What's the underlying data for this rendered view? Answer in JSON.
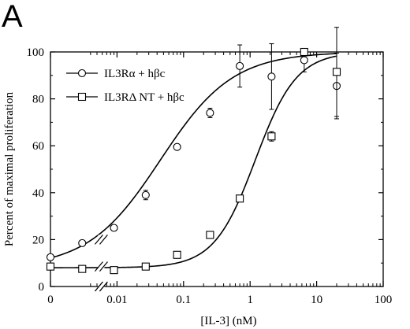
{
  "chart_data": {
    "type": "scatter",
    "panel_label": "A",
    "xlabel": "[IL-3] (nM)",
    "ylabel": "Percent of maximal proliferation",
    "x_scale": "log with zero point and axis break",
    "x_ticks": [
      "0",
      "0.01",
      "0.1",
      "1",
      "10",
      "100"
    ],
    "xlim": [
      0.001,
      100
    ],
    "y_ticks": [
      "0",
      "20",
      "40",
      "60",
      "80",
      "100"
    ],
    "ylim": [
      0,
      100
    ],
    "grid": false,
    "legend": {
      "placement": "top-left",
      "entries": [
        "IL3Rα + hβc",
        "IL3RΔ NT + hβc"
      ]
    },
    "series": [
      {
        "name": "IL3Rα + hβc",
        "marker": "circle",
        "points": [
          {
            "x": 0,
            "y": 12.5,
            "err": 0
          },
          {
            "x": 0.003,
            "y": 18.5,
            "err": 0
          },
          {
            "x": 0.009,
            "y": 25,
            "err": 0
          },
          {
            "x": 0.027,
            "y": 39,
            "err": 2
          },
          {
            "x": 0.08,
            "y": 59.5,
            "err": 0
          },
          {
            "x": 0.25,
            "y": 74,
            "err": 2
          },
          {
            "x": 0.7,
            "y": 94,
            "err": 9
          },
          {
            "x": 2.1,
            "y": 89.5,
            "err": 14
          },
          {
            "x": 6.5,
            "y": 96.5,
            "err": 5
          },
          {
            "x": 20,
            "y": 85.5,
            "err": 14
          }
        ],
        "fit": {
          "bottom": 8,
          "top": 100,
          "ec50": 0.045,
          "hill": 0.8
        }
      },
      {
        "name": "IL3RΔ NT + hβc",
        "marker": "square",
        "points": [
          {
            "x": 0,
            "y": 8.5,
            "err": 0
          },
          {
            "x": 0.003,
            "y": 7.5,
            "err": 0
          },
          {
            "x": 0.009,
            "y": 7,
            "err": 0
          },
          {
            "x": 0.027,
            "y": 8.5,
            "err": 0
          },
          {
            "x": 0.08,
            "y": 13.5,
            "err": 0
          },
          {
            "x": 0.25,
            "y": 22,
            "err": 0
          },
          {
            "x": 0.7,
            "y": 37.5,
            "err": 0
          },
          {
            "x": 2.1,
            "y": 64,
            "err": 2
          },
          {
            "x": 6.5,
            "y": 100,
            "err": 0
          },
          {
            "x": 20,
            "y": 91.5,
            "err": 19
          }
        ],
        "fit": {
          "bottom": 8,
          "top": 100,
          "ec50": 1.2,
          "hill": 1.4
        }
      }
    ]
  }
}
